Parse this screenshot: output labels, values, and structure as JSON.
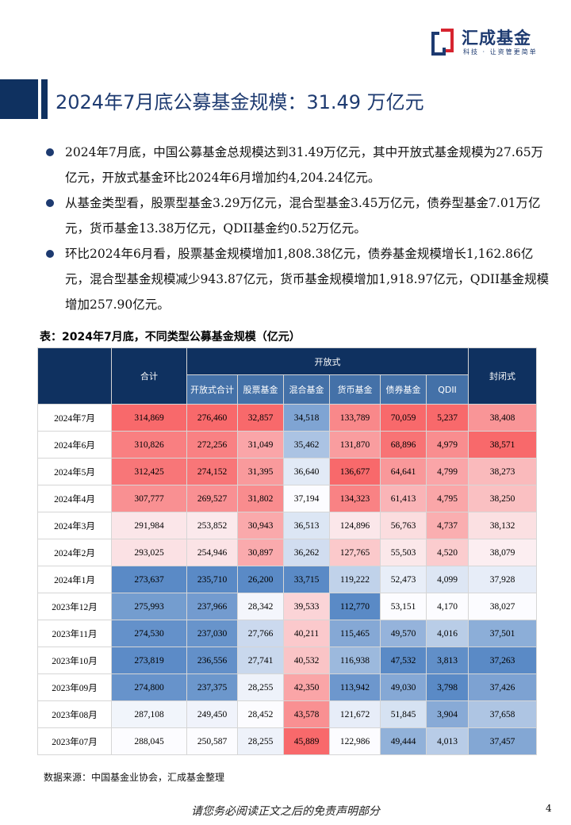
{
  "logo": {
    "name": "汇成基金",
    "slogan": "科技 · 让资管更简单"
  },
  "title": "2024年7月底公募基金规模：31.49 万亿元",
  "bullets": [
    "2024年7月底，中国公募基金总规模达到31.49万亿元，其中开放式基金规模为27.65万亿元，开放式基金环比2024年6月增加约4,204.24亿元。",
    "从基金类型看，股票型基金3.29万亿元，混合型基金3.45万亿元，债券型基金7.01万亿元，货币基金13.38万亿元，QDII基金约0.52万亿元。",
    "环比2024年6月看，股票基金规模增加1,808.38亿元，债券基金规模增长1,162.86亿元，混合型基金规模减少943.87亿元，货币基金规模增加1,918.97亿元，QDII基金规模增加257.90亿元。"
  ],
  "table": {
    "caption": "表：2024年7月底，不同类型公募基金规模（亿元）",
    "header_total": "合计",
    "header_open": "开放式",
    "header_closed": "封闭式",
    "sub_headers": [
      "开放式合计",
      "股票基金",
      "混合基金",
      "货币基金",
      "债券基金",
      "QDII"
    ],
    "colors": {
      "low": "#5a8ac6",
      "mid": "#fcfcff",
      "high": "#f8696b"
    },
    "rows": [
      [
        "2024年7月",
        "314,869",
        "276,460",
        "32,857",
        "34,518",
        "133,789",
        "70,059",
        "5,237",
        "38,408"
      ],
      [
        "2024年6月",
        "310,826",
        "272,256",
        "31,049",
        "35,462",
        "131,870",
        "68,896",
        "4,979",
        "38,571"
      ],
      [
        "2024年5月",
        "312,425",
        "274,152",
        "31,395",
        "36,640",
        "136,677",
        "64,641",
        "4,799",
        "38,273"
      ],
      [
        "2024年4月",
        "307,777",
        "269,527",
        "31,802",
        "37,194",
        "134,323",
        "61,413",
        "4,795",
        "38,250"
      ],
      [
        "2024年3月",
        "291,984",
        "253,852",
        "30,943",
        "36,513",
        "124,896",
        "56,763",
        "4,737",
        "38,132"
      ],
      [
        "2024年2月",
        "293,025",
        "254,946",
        "30,897",
        "36,262",
        "127,765",
        "55,503",
        "4,520",
        "38,079"
      ],
      [
        "2024年1月",
        "273,637",
        "235,710",
        "26,200",
        "33,715",
        "119,222",
        "52,473",
        "4,099",
        "37,928"
      ],
      [
        "2023年12月",
        "275,993",
        "237,966",
        "28,342",
        "39,533",
        "112,770",
        "53,151",
        "4,170",
        "38,027"
      ],
      [
        "2023年11月",
        "274,530",
        "237,030",
        "27,766",
        "40,211",
        "115,465",
        "49,570",
        "4,016",
        "37,501"
      ],
      [
        "2023年10月",
        "273,819",
        "236,556",
        "27,741",
        "40,532",
        "116,938",
        "47,532",
        "3,813",
        "37,263"
      ],
      [
        "2023年09月",
        "274,800",
        "237,375",
        "28,255",
        "42,350",
        "113,942",
        "49,030",
        "3,798",
        "37,426"
      ],
      [
        "2023年08月",
        "287,108",
        "249,450",
        "28,452",
        "43,578",
        "121,672",
        "51,845",
        "3,904",
        "37,658"
      ],
      [
        "2023年07月",
        "288,045",
        "250,587",
        "28,255",
        "45,889",
        "122,986",
        "49,444",
        "4,013",
        "37,457"
      ]
    ]
  },
  "source": "数据来源：中国基金业协会，汇成基金整理",
  "disclaimer": "请您务必阅读正文之后的免责声明部分",
  "page_number": "4"
}
